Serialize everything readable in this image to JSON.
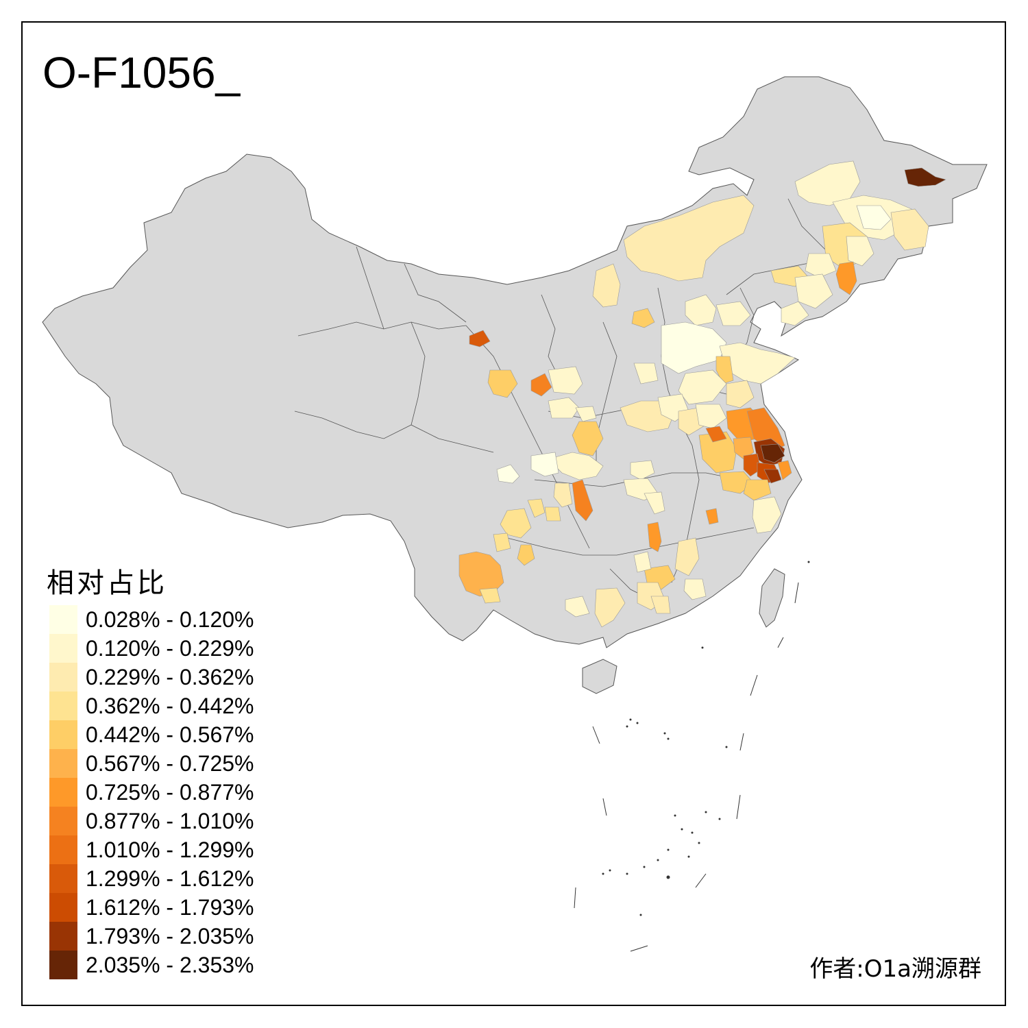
{
  "map": {
    "title": "O-F1056_",
    "base_color": "#d9d9d9",
    "no_data_color": "#d9d9d9",
    "border_color": "#555555"
  },
  "legend": {
    "title": "相对占比",
    "bins": [
      {
        "label": "0.028% - 0.120%",
        "color": "#ffffe5"
      },
      {
        "label": "0.120% - 0.229%",
        "color": "#fff7cc"
      },
      {
        "label": "0.229% - 0.362%",
        "color": "#feebb0"
      },
      {
        "label": "0.362% - 0.442%",
        "color": "#fee391"
      },
      {
        "label": "0.442% - 0.567%",
        "color": "#fece66"
      },
      {
        "label": "0.567% - 0.725%",
        "color": "#feb24c"
      },
      {
        "label": "0.725% - 0.877%",
        "color": "#fe9929"
      },
      {
        "label": "0.877% - 1.010%",
        "color": "#f58220"
      },
      {
        "label": "1.010% - 1.299%",
        "color": "#ec7014"
      },
      {
        "label": "1.299% - 1.612%",
        "color": "#d95a0a"
      },
      {
        "label": "1.612% - 1.793%",
        "color": "#cc4c02"
      },
      {
        "label": "1.793% - 2.035%",
        "color": "#993404"
      },
      {
        "label": "2.035% - 2.353%",
        "color": "#662506"
      }
    ]
  },
  "author": "作者:O1a溯源群"
}
